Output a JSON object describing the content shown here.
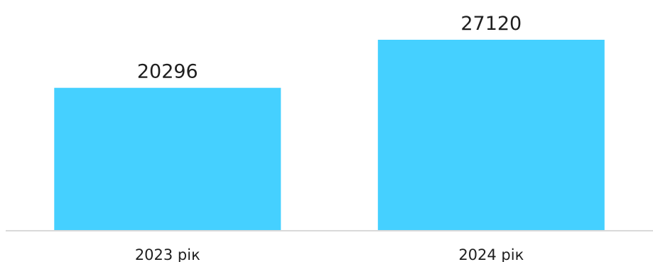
{
  "chart_data": {
    "type": "bar",
    "categories": [
      "2023 рік",
      "2024 рік"
    ],
    "values": [
      20296,
      27120
    ],
    "value_labels": [
      "20296",
      "27120"
    ],
    "title": "",
    "xlabel": "",
    "ylabel": "",
    "ylim": [
      0,
      27120
    ],
    "grid": false,
    "legend": "none",
    "colors": {
      "bar": "#45D0FF",
      "baseline": "#d9d9d9",
      "text": "#1f1f1f"
    }
  }
}
